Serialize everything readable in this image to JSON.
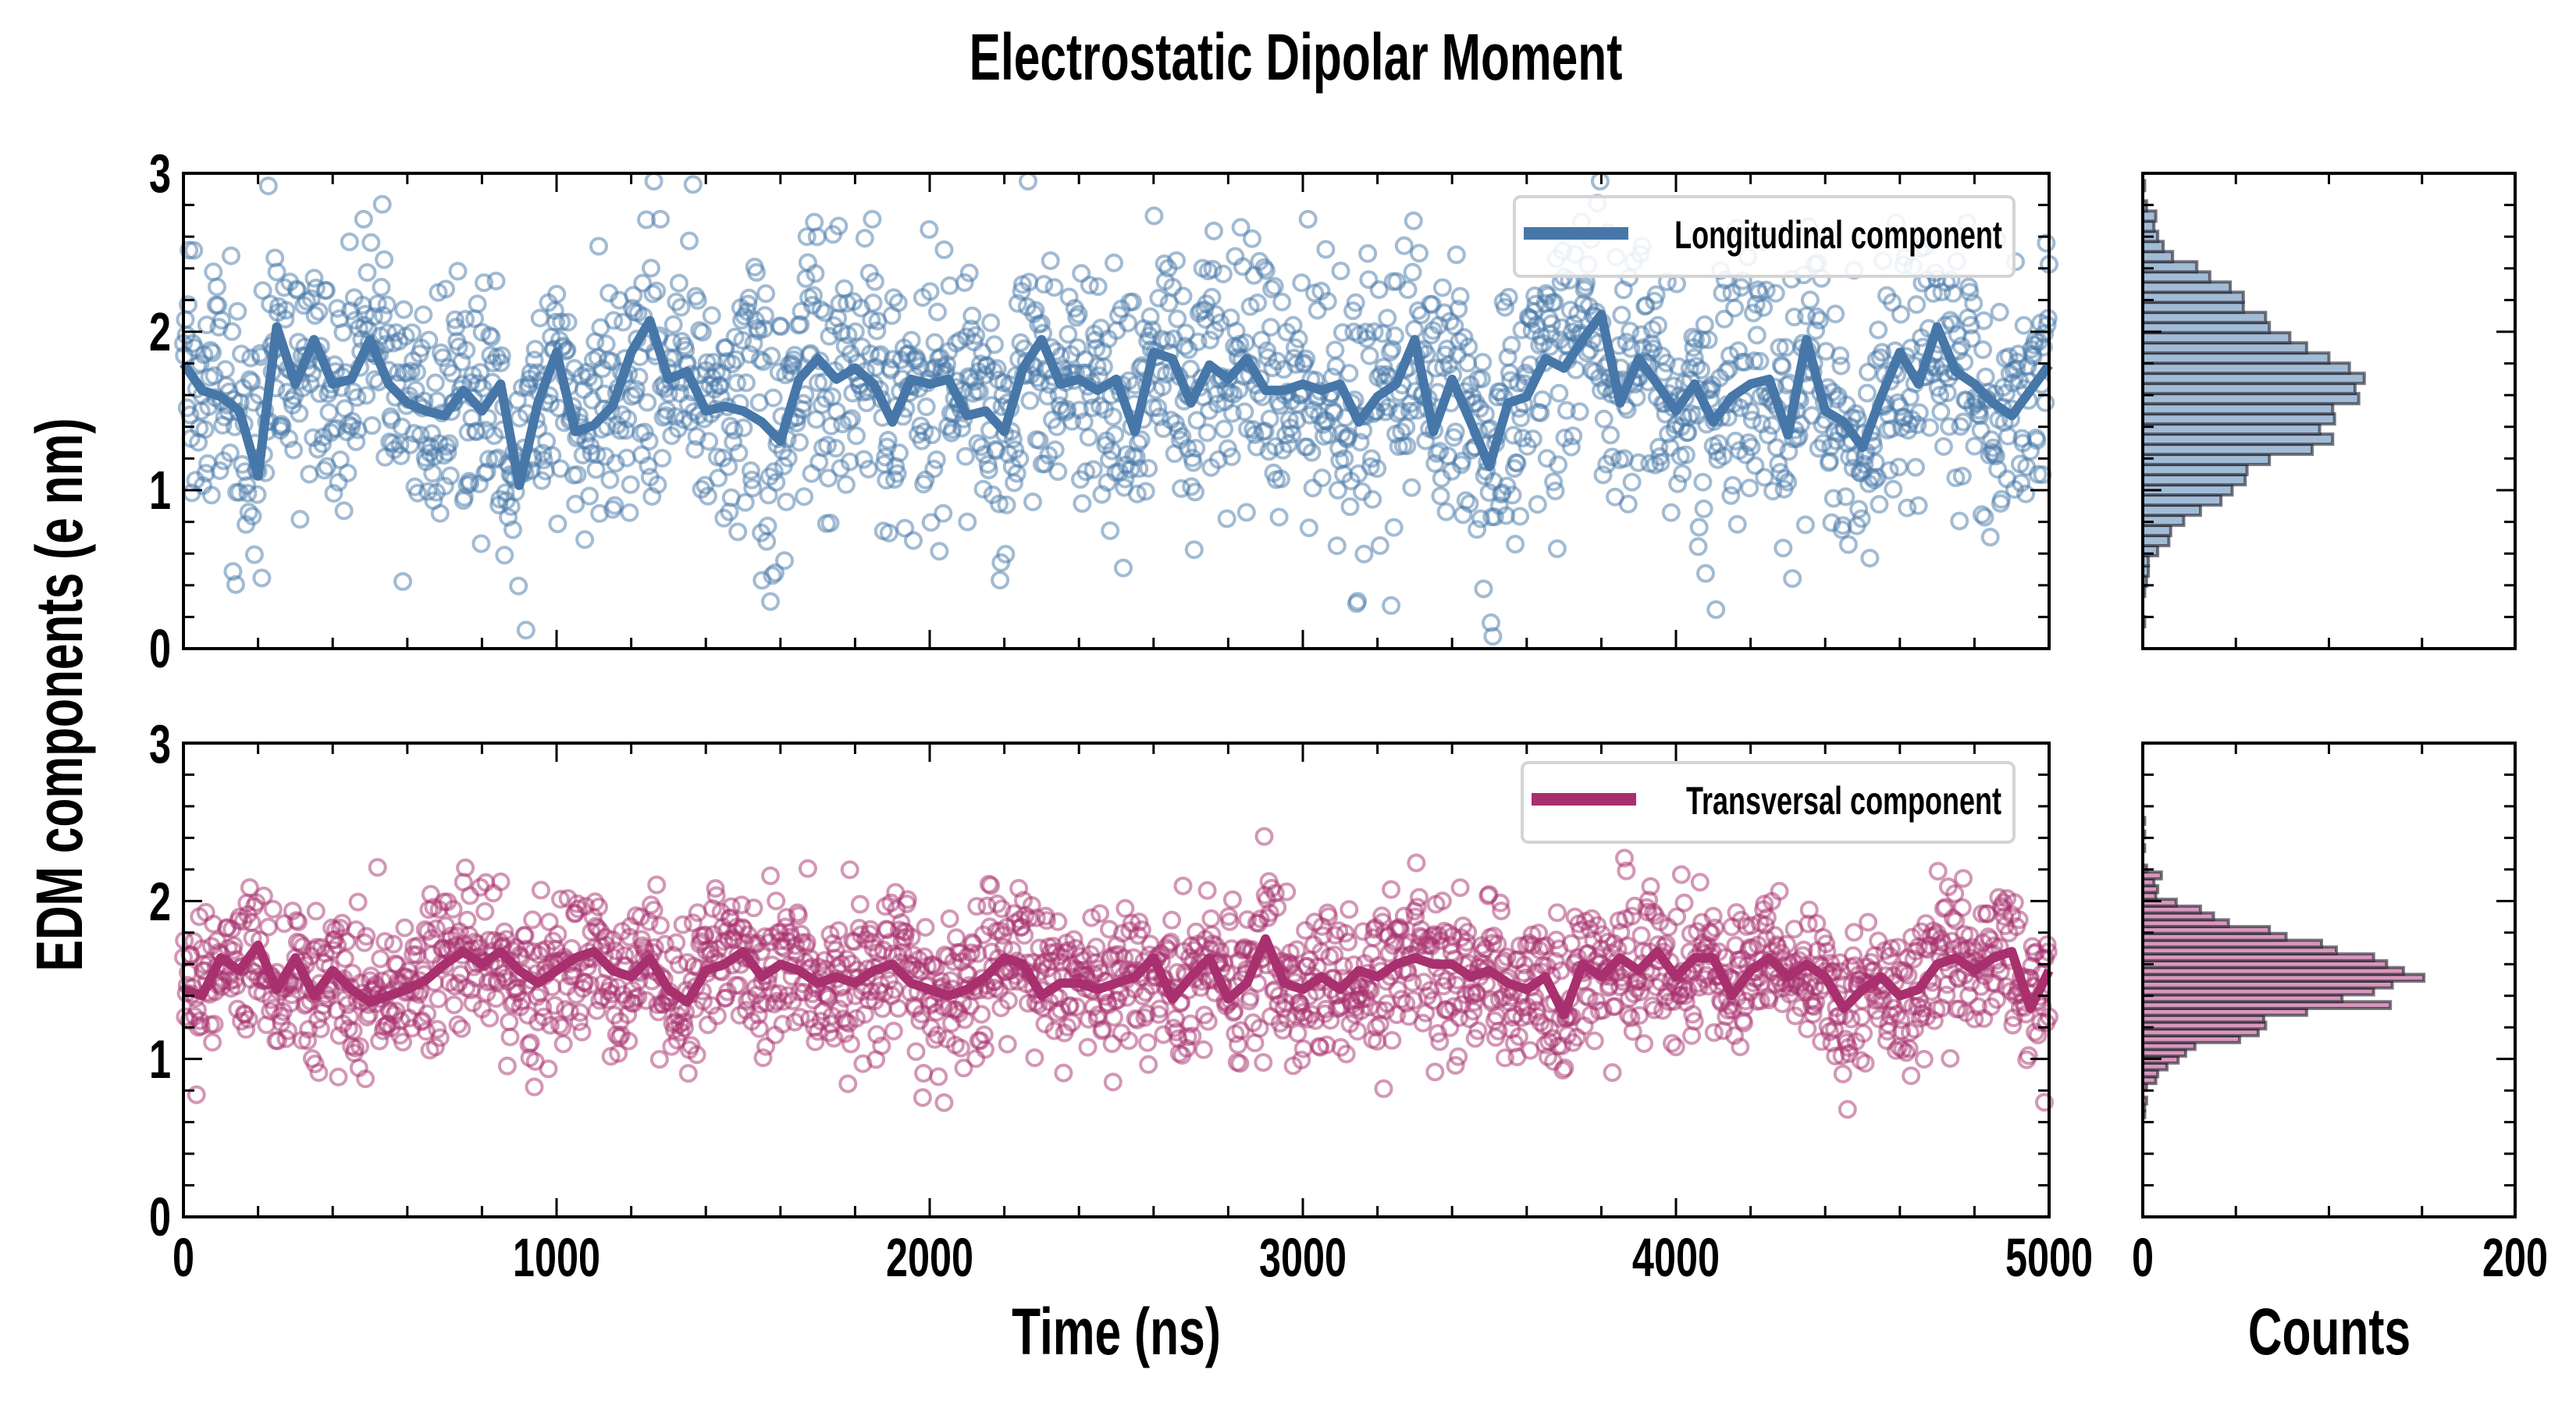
{
  "title": "Electrostatic Dipolar Moment",
  "colors": {
    "longitudinal": "#4677a8",
    "longitudinal_scatter": "rgba(70,119,168,0.5)",
    "longitudinal_hist": "#a3bcd6",
    "transversal": "#a8306e",
    "transversal_scatter": "rgba(168,48,110,0.5)",
    "transversal_hist": "#d898bd",
    "hist_edge": "rgba(30,30,40,0.6)"
  },
  "chart_data": [
    {
      "type": "line+scatter",
      "panel": "top",
      "legend": "Longitudinal component",
      "legend_placement": "top-right",
      "xlabel": "Time (ns)",
      "ylabel": "EDM components (e nm)",
      "xlim": [
        0,
        5000
      ],
      "ylim": [
        0,
        3
      ],
      "xticks": [
        "0",
        "1000",
        "2000",
        "3000",
        "4000",
        "5000"
      ],
      "yticks": [
        "0",
        "1",
        "2",
        "3"
      ],
      "scatter_points": 2000,
      "scatter_std": 0.42,
      "line_x_step": 50,
      "line_values": [
        1.8,
        1.63,
        1.59,
        1.5,
        1.09,
        2.03,
        1.67,
        1.95,
        1.67,
        1.7,
        1.95,
        1.67,
        1.55,
        1.5,
        1.47,
        1.63,
        1.5,
        1.67,
        1.03,
        1.55,
        1.87,
        1.37,
        1.41,
        1.53,
        1.87,
        2.07,
        1.7,
        1.75,
        1.5,
        1.53,
        1.5,
        1.43,
        1.31,
        1.7,
        1.83,
        1.7,
        1.77,
        1.67,
        1.43,
        1.7,
        1.67,
        1.7,
        1.47,
        1.5,
        1.37,
        1.77,
        1.95,
        1.67,
        1.7,
        1.63,
        1.7,
        1.37,
        1.87,
        1.83,
        1.55,
        1.79,
        1.7,
        1.83,
        1.63,
        1.63,
        1.67,
        1.63,
        1.67,
        1.43,
        1.59,
        1.67,
        1.95,
        1.37,
        1.7,
        1.43,
        1.15,
        1.55,
        1.59,
        1.83,
        1.77,
        1.95,
        2.11,
        1.55,
        1.83,
        1.67,
        1.5,
        1.67,
        1.43,
        1.59,
        1.67,
        1.7,
        1.35,
        1.95,
        1.5,
        1.43,
        1.27,
        1.59,
        1.87,
        1.67,
        2.03,
        1.75,
        1.67,
        1.55,
        1.47,
        1.63,
        1.79
      ]
    },
    {
      "type": "line+scatter",
      "panel": "bottom",
      "legend": "Transversal component",
      "legend_placement": "top-right",
      "xlim": [
        0,
        5000
      ],
      "ylim": [
        0,
        3
      ],
      "xticks": [
        "0",
        "1000",
        "2000",
        "3000",
        "4000",
        "5000"
      ],
      "yticks": [
        "0",
        "1",
        "2",
        "3"
      ],
      "scatter_points": 2000,
      "scatter_std": 0.24,
      "line_x_step": 50,
      "line_values": [
        1.44,
        1.4,
        1.64,
        1.56,
        1.72,
        1.44,
        1.64,
        1.4,
        1.56,
        1.44,
        1.36,
        1.4,
        1.44,
        1.5,
        1.6,
        1.68,
        1.6,
        1.68,
        1.56,
        1.48,
        1.56,
        1.64,
        1.68,
        1.56,
        1.52,
        1.64,
        1.44,
        1.36,
        1.56,
        1.6,
        1.68,
        1.52,
        1.6,
        1.56,
        1.48,
        1.52,
        1.48,
        1.56,
        1.6,
        1.48,
        1.44,
        1.4,
        1.44,
        1.52,
        1.64,
        1.6,
        1.4,
        1.48,
        1.48,
        1.44,
        1.48,
        1.52,
        1.64,
        1.38,
        1.52,
        1.64,
        1.38,
        1.48,
        1.76,
        1.48,
        1.44,
        1.52,
        1.44,
        1.56,
        1.52,
        1.6,
        1.64,
        1.6,
        1.6,
        1.52,
        1.56,
        1.48,
        1.44,
        1.52,
        1.28,
        1.6,
        1.52,
        1.64,
        1.56,
        1.68,
        1.52,
        1.64,
        1.64,
        1.4,
        1.56,
        1.64,
        1.52,
        1.6,
        1.52,
        1.32,
        1.44,
        1.52,
        1.4,
        1.44,
        1.6,
        1.64,
        1.56,
        1.64,
        1.68,
        1.32,
        1.56
      ]
    },
    {
      "type": "histogram",
      "panel": "top-right",
      "orientation": "horizontal",
      "xlabel": "Counts",
      "xlim": [
        0,
        200
      ],
      "xticks": [
        "0",
        "200"
      ],
      "ylim": [
        0,
        3
      ],
      "bin_start_center": 0.17,
      "bin_width": 0.064,
      "counts": [
        1,
        0,
        0,
        1,
        2,
        3,
        3,
        8,
        14,
        15,
        22,
        31,
        42,
        48,
        55,
        56,
        68,
        91,
        102,
        95,
        103,
        102,
        116,
        114,
        119,
        111,
        100,
        88,
        79,
        68,
        66,
        54,
        54,
        47,
        36,
        29,
        16,
        11,
        8,
        6,
        7,
        2,
        0,
        1
      ]
    },
    {
      "type": "histogram",
      "panel": "bottom-right",
      "orientation": "horizontal",
      "xlabel": "Counts",
      "xlim": [
        0,
        200
      ],
      "xticks": [
        "0",
        "200"
      ],
      "ylim": [
        0,
        3
      ],
      "bin_start_center": 0.65,
      "bin_width": 0.0432,
      "counts": [
        1,
        1,
        2,
        0,
        2,
        7,
        8,
        13,
        19,
        23,
        28,
        52,
        62,
        66,
        65,
        88,
        133,
        107,
        124,
        134,
        151,
        140,
        131,
        124,
        104,
        96,
        77,
        68,
        46,
        38,
        31,
        18,
        7,
        8,
        6,
        10,
        2,
        0,
        0,
        1,
        0,
        1,
        0,
        1
      ]
    }
  ]
}
